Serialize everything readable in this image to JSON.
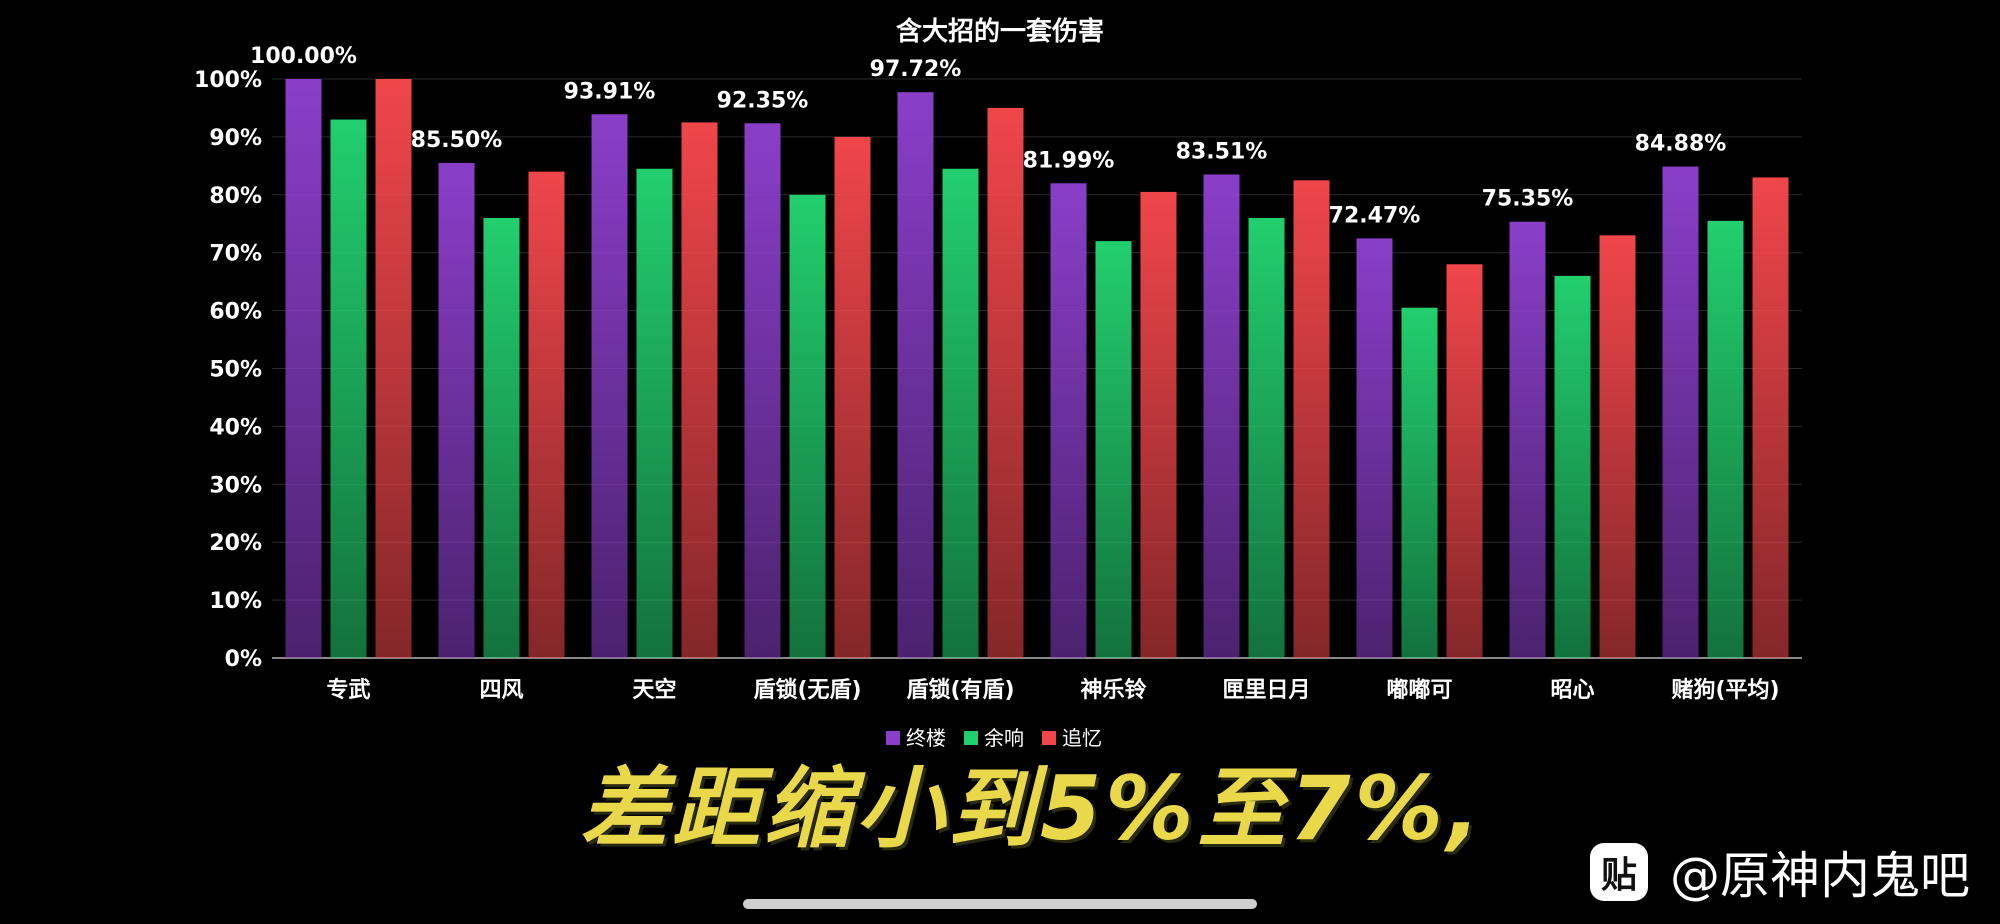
{
  "chart_data": {
    "type": "bar",
    "title": "含大招的一套伤害",
    "categories": [
      "专武",
      "四风",
      "天空",
      "盾锁(无盾)",
      "盾锁(有盾)",
      "神乐铃",
      "匣里日月",
      "嘟嘟可",
      "昭心",
      "赌狗(平均)"
    ],
    "series": [
      {
        "name": "终楼",
        "color": "#8a3ec9",
        "values": [
          100.0,
          85.5,
          93.91,
          92.35,
          97.72,
          81.99,
          83.51,
          72.47,
          75.35,
          84.88
        ],
        "labels": [
          "100.00%",
          "85.50%",
          "93.91%",
          "92.35%",
          "97.72%",
          "81.99%",
          "83.51%",
          "72.47%",
          "75.35%",
          "84.88%"
        ]
      },
      {
        "name": "余响",
        "color": "#22cf6e",
        "values": [
          93.0,
          76.0,
          84.5,
          80.0,
          84.5,
          72.0,
          76.0,
          60.5,
          66.0,
          75.5
        ]
      },
      {
        "name": "追忆",
        "color": "#f0464a",
        "values": [
          100.0,
          84.0,
          92.5,
          90.0,
          95.0,
          80.5,
          82.5,
          68.0,
          73.0,
          83.0
        ]
      }
    ],
    "yticks": [
      "0%",
      "10%",
      "20%",
      "30%",
      "40%",
      "50%",
      "60%",
      "70%",
      "80%",
      "90%",
      "100%"
    ],
    "ylim": [
      0,
      100
    ],
    "grid": true,
    "legend": "bottom"
  },
  "caption": "差距缩小到5%至7%,",
  "watermark": {
    "icon": "贴",
    "text": "@原神内鬼吧"
  }
}
